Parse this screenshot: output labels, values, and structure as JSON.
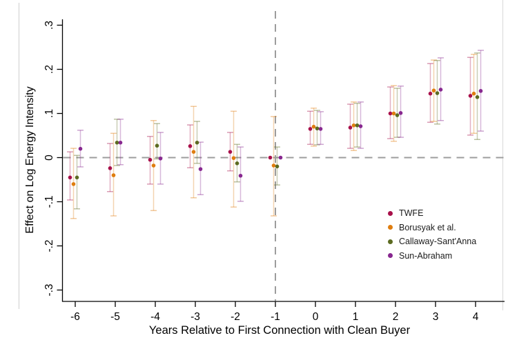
{
  "figure": {
    "background_color": "#ffffff",
    "axis_color": "#000000",
    "reference_line_color": "#9c9c9c"
  },
  "chart_data": {
    "type": "scatter",
    "subtype": "event-study coefficient plot with confidence intervals",
    "title": "",
    "xlabel": "Years Relative to First Connection with Clean Buyer",
    "ylabel": "Effect on Log Energy Intensity",
    "x_tick_labels": [
      "-6",
      "-5",
      "-4",
      "-3",
      "-2",
      "-1",
      "0",
      "1",
      "2",
      "3",
      "4"
    ],
    "y_ticks": [
      {
        "label": ".3",
        "value": 0.3
      },
      {
        "label": ".2",
        "value": 0.2
      },
      {
        "label": ".1",
        "value": 0.1
      },
      {
        "label": "0",
        "value": 0.0
      },
      {
        "label": "-.1",
        "value": -0.1
      },
      {
        "label": "-.2",
        "value": -0.2
      },
      {
        "label": "-.3",
        "value": -0.3
      }
    ],
    "xlim": [
      -6.4,
      4.8
    ],
    "ylim": [
      -0.3,
      0.3
    ],
    "grid": false,
    "legend_position": "inside-right",
    "reference_lines": {
      "horizontal_at_y": 0,
      "vertical_at_x": -1,
      "style": "dashed gray"
    },
    "series": [
      {
        "name": "TWFE",
        "color": "#a8104a",
        "marker": "circle",
        "points": [
          {
            "x": -6,
            "est": -0.045,
            "lo": -0.096,
            "hi": 0.013
          },
          {
            "x": -5,
            "est": -0.024,
            "lo": -0.077,
            "hi": 0.032
          },
          {
            "x": -4,
            "est": -0.005,
            "lo": -0.06,
            "hi": 0.048
          },
          {
            "x": -3,
            "est": 0.026,
            "lo": -0.023,
            "hi": 0.074
          },
          {
            "x": -2,
            "est": 0.013,
            "lo": -0.03,
            "hi": 0.057
          },
          {
            "x": -1,
            "est": 0.0,
            "lo": 0.0,
            "hi": 0.0
          },
          {
            "x": 0,
            "est": 0.065,
            "lo": 0.03,
            "hi": 0.105
          },
          {
            "x": 1,
            "est": 0.068,
            "lo": 0.021,
            "hi": 0.121
          },
          {
            "x": 2,
            "est": 0.1,
            "lo": 0.043,
            "hi": 0.16
          },
          {
            "x": 3,
            "est": 0.145,
            "lo": 0.08,
            "hi": 0.213
          },
          {
            "x": 4,
            "est": 0.14,
            "lo": 0.051,
            "hi": 0.227
          }
        ]
      },
      {
        "name": "Borusyak et al.",
        "color": "#df7d0f",
        "marker": "circle",
        "points": [
          {
            "x": -6,
            "est": -0.06,
            "lo": -0.138,
            "hi": 0.021
          },
          {
            "x": -5,
            "est": -0.04,
            "lo": -0.132,
            "hi": 0.055
          },
          {
            "x": -4,
            "est": -0.018,
            "lo": -0.12,
            "hi": 0.084
          },
          {
            "x": -3,
            "est": 0.013,
            "lo": -0.091,
            "hi": 0.116
          },
          {
            "x": -2,
            "est": -0.001,
            "lo": -0.112,
            "hi": 0.105
          },
          {
            "x": -1,
            "est": -0.018,
            "lo": -0.132,
            "hi": 0.093
          },
          {
            "x": 0,
            "est": 0.07,
            "lo": 0.026,
            "hi": 0.112
          },
          {
            "x": 1,
            "est": 0.073,
            "lo": 0.016,
            "hi": 0.126
          },
          {
            "x": 2,
            "est": 0.1,
            "lo": 0.037,
            "hi": 0.163
          },
          {
            "x": 3,
            "est": 0.152,
            "lo": 0.082,
            "hi": 0.221
          },
          {
            "x": 4,
            "est": 0.145,
            "lo": 0.055,
            "hi": 0.234
          }
        ]
      },
      {
        "name": "Callaway-Sant'Anna",
        "color": "#5c6b21",
        "marker": "circle",
        "points": [
          {
            "x": -6,
            "est": -0.045,
            "lo": -0.116,
            "hi": 0.005
          },
          {
            "x": -5,
            "est": 0.034,
            "lo": -0.018,
            "hi": 0.087
          },
          {
            "x": -4,
            "est": 0.027,
            "lo": -0.003,
            "hi": 0.077
          },
          {
            "x": -3,
            "est": 0.034,
            "lo": -0.013,
            "hi": 0.082
          },
          {
            "x": -2,
            "est": -0.013,
            "lo": -0.055,
            "hi": 0.03
          },
          {
            "x": -1,
            "est": -0.02,
            "lo": -0.062,
            "hi": 0.024
          },
          {
            "x": 0,
            "est": 0.066,
            "lo": 0.029,
            "hi": 0.107
          },
          {
            "x": 1,
            "est": 0.073,
            "lo": 0.024,
            "hi": 0.123
          },
          {
            "x": 2,
            "est": 0.096,
            "lo": 0.046,
            "hi": 0.157
          },
          {
            "x": 3,
            "est": 0.146,
            "lo": 0.076,
            "hi": 0.22
          },
          {
            "x": 4,
            "est": 0.137,
            "lo": 0.041,
            "hi": 0.237
          }
        ]
      },
      {
        "name": "Sun-Abraham",
        "color": "#87278f",
        "marker": "circle",
        "points": [
          {
            "x": -6,
            "est": 0.02,
            "lo": -0.021,
            "hi": 0.062
          },
          {
            "x": -5,
            "est": 0.034,
            "lo": -0.016,
            "hi": 0.087
          },
          {
            "x": -4,
            "est": -0.002,
            "lo": -0.06,
            "hi": 0.057
          },
          {
            "x": -3,
            "est": -0.026,
            "lo": -0.084,
            "hi": 0.035
          },
          {
            "x": -2,
            "est": -0.041,
            "lo": -0.099,
            "hi": 0.024
          },
          {
            "x": -1,
            "est": 0.0,
            "lo": 0.0,
            "hi": 0.0
          },
          {
            "x": 0,
            "est": 0.065,
            "lo": 0.03,
            "hi": 0.104
          },
          {
            "x": 1,
            "est": 0.071,
            "lo": 0.021,
            "hi": 0.126
          },
          {
            "x": 2,
            "est": 0.101,
            "lo": 0.046,
            "hi": 0.162
          },
          {
            "x": 3,
            "est": 0.154,
            "lo": 0.084,
            "hi": 0.226
          },
          {
            "x": 4,
            "est": 0.151,
            "lo": 0.06,
            "hi": 0.243
          }
        ]
      }
    ]
  }
}
